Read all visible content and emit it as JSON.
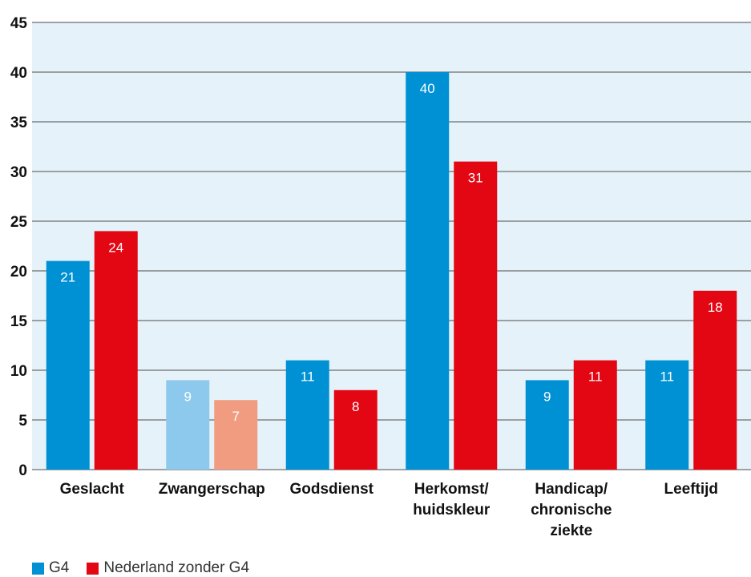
{
  "chart_data": {
    "type": "bar",
    "title": "",
    "xlabel": "",
    "ylabel": "",
    "ylim": [
      0,
      45
    ],
    "yticks": [
      0,
      5,
      10,
      15,
      20,
      25,
      30,
      35,
      40,
      45
    ],
    "grid": true,
    "categories": [
      [
        "Geslacht"
      ],
      [
        "Zwangerschap"
      ],
      [
        "Godsdienst"
      ],
      [
        "Herkomst/",
        "huidskleur"
      ],
      [
        "Handicap/",
        "chronische",
        "ziekte"
      ],
      [
        "Leeftijd"
      ]
    ],
    "series": [
      {
        "name": "G4",
        "values": [
          21,
          9,
          11,
          40,
          9,
          11
        ]
      },
      {
        "name": "Nederland zonder G4",
        "values": [
          24,
          7,
          8,
          31,
          11,
          18
        ]
      }
    ],
    "muted_category": "Zwangerschap",
    "legend_position": "bottom-left"
  },
  "colors": {
    "plot_background": "#e5f2fa",
    "gridline": "#6e6e6e",
    "g4": "#0091d5",
    "nl": "#e30613",
    "g4_muted": "#8cc9ec",
    "nl_muted": "#f19b80"
  }
}
